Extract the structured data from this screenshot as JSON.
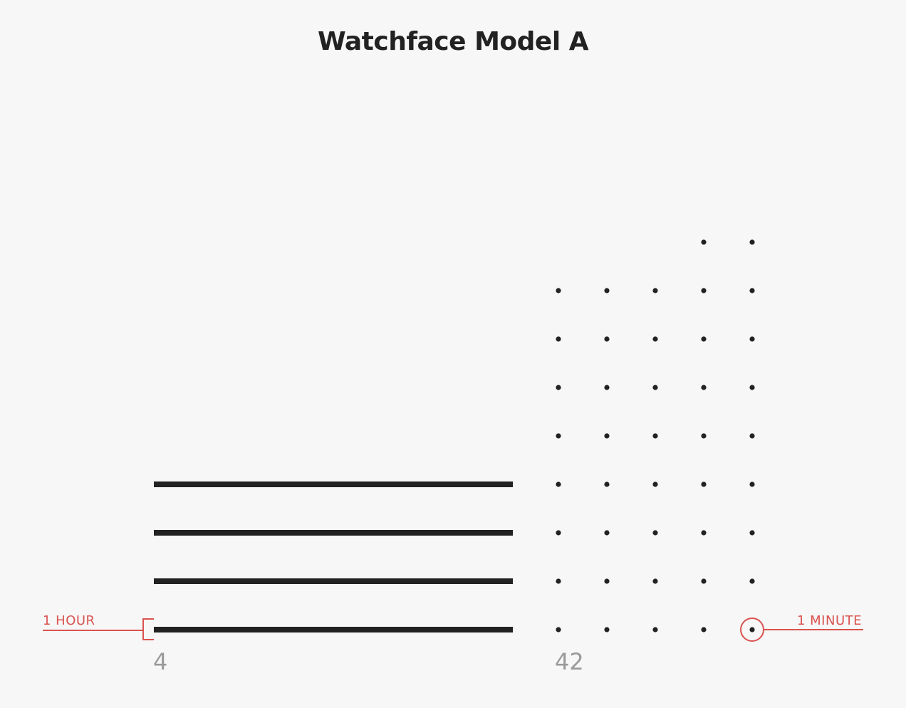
{
  "title": "Watchface Model A",
  "time": {
    "hours": 4,
    "minutes": 42,
    "hours_label": "4",
    "minutes_label": "42"
  },
  "legend": {
    "hour_label": "1 HOUR",
    "minute_label": "1 MINUTE"
  },
  "colors": {
    "background": "#f7f7f7",
    "ink": "#222222",
    "accent": "#d9534f",
    "readout": "#9a9a9a"
  }
}
